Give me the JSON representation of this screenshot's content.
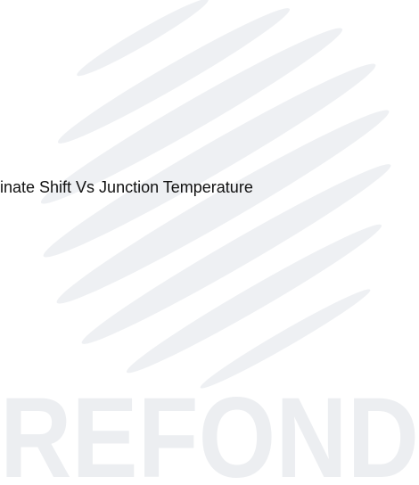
{
  "caption": "inate Shift Vs Junction Temperature",
  "watermark": "REFOND"
}
